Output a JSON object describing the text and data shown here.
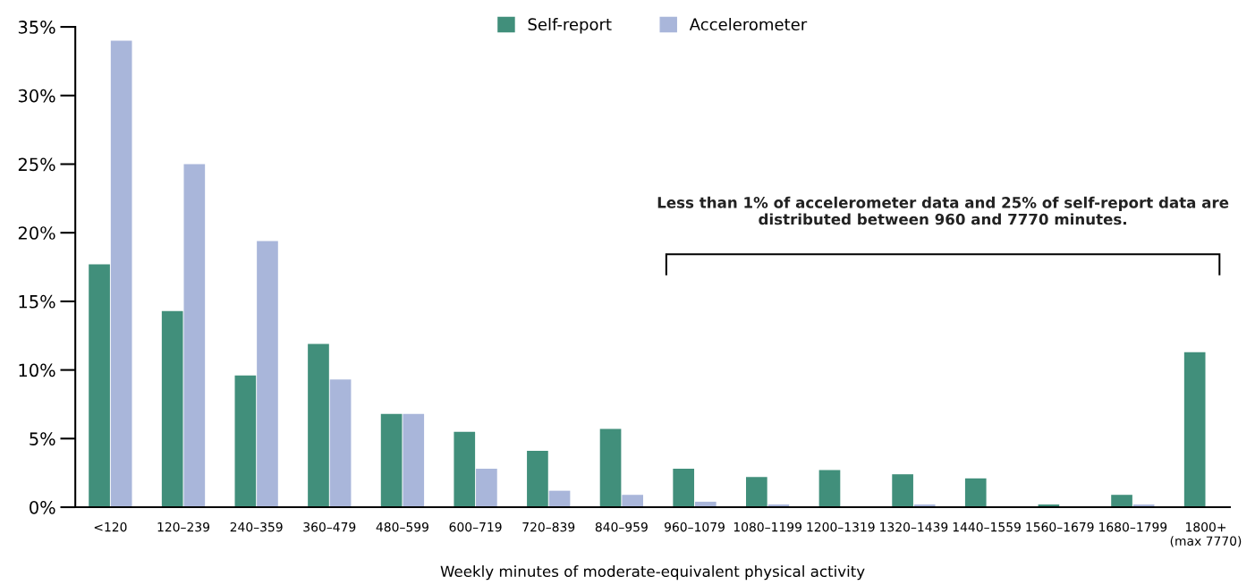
{
  "chart_data": {
    "type": "bar",
    "xlabel": "Weekly minutes of moderate-equivalent physical activity",
    "categories": [
      "<120",
      "120–239",
      "240–359",
      "360–479",
      "480–599",
      "600–719",
      "720–839",
      "840–959",
      "960–1079",
      "1080–1199",
      "1200–1319",
      "1320–1439",
      "1440–1559",
      "1560–1679",
      "1680–1799",
      "1800+\n(max 7770)"
    ],
    "series": [
      {
        "name": "Self-report",
        "color": "#418f7b",
        "values": [
          17.7,
          14.3,
          9.6,
          11.9,
          6.8,
          5.5,
          4.1,
          5.7,
          2.8,
          2.2,
          2.7,
          2.4,
          2.1,
          0.2,
          0.9,
          11.3
        ]
      },
      {
        "name": "Accelerometer",
        "color": "#a9b6da",
        "values": [
          34.0,
          25.0,
          19.4,
          9.3,
          6.8,
          2.8,
          1.2,
          0.9,
          0.4,
          0.2,
          null,
          0.2,
          null,
          null,
          0.2,
          null
        ]
      }
    ],
    "ylim": [
      0,
      35
    ],
    "yticks": [
      {
        "value": 0,
        "label": "0%"
      },
      {
        "value": 5,
        "label": "5%"
      },
      {
        "value": 10,
        "label": "10%"
      },
      {
        "value": 15,
        "label": "15%"
      },
      {
        "value": 20,
        "label": "20%"
      },
      {
        "value": 25,
        "label": "25%"
      },
      {
        "value": 30,
        "label": "30%"
      },
      {
        "value": 35,
        "label": "35%"
      }
    ],
    "annotations": [
      "Less than 1% of accelerometer data and 25% of self-report data are\ndistributed between 960 and 7770 minutes."
    ],
    "legend": "top",
    "grid": false
  }
}
